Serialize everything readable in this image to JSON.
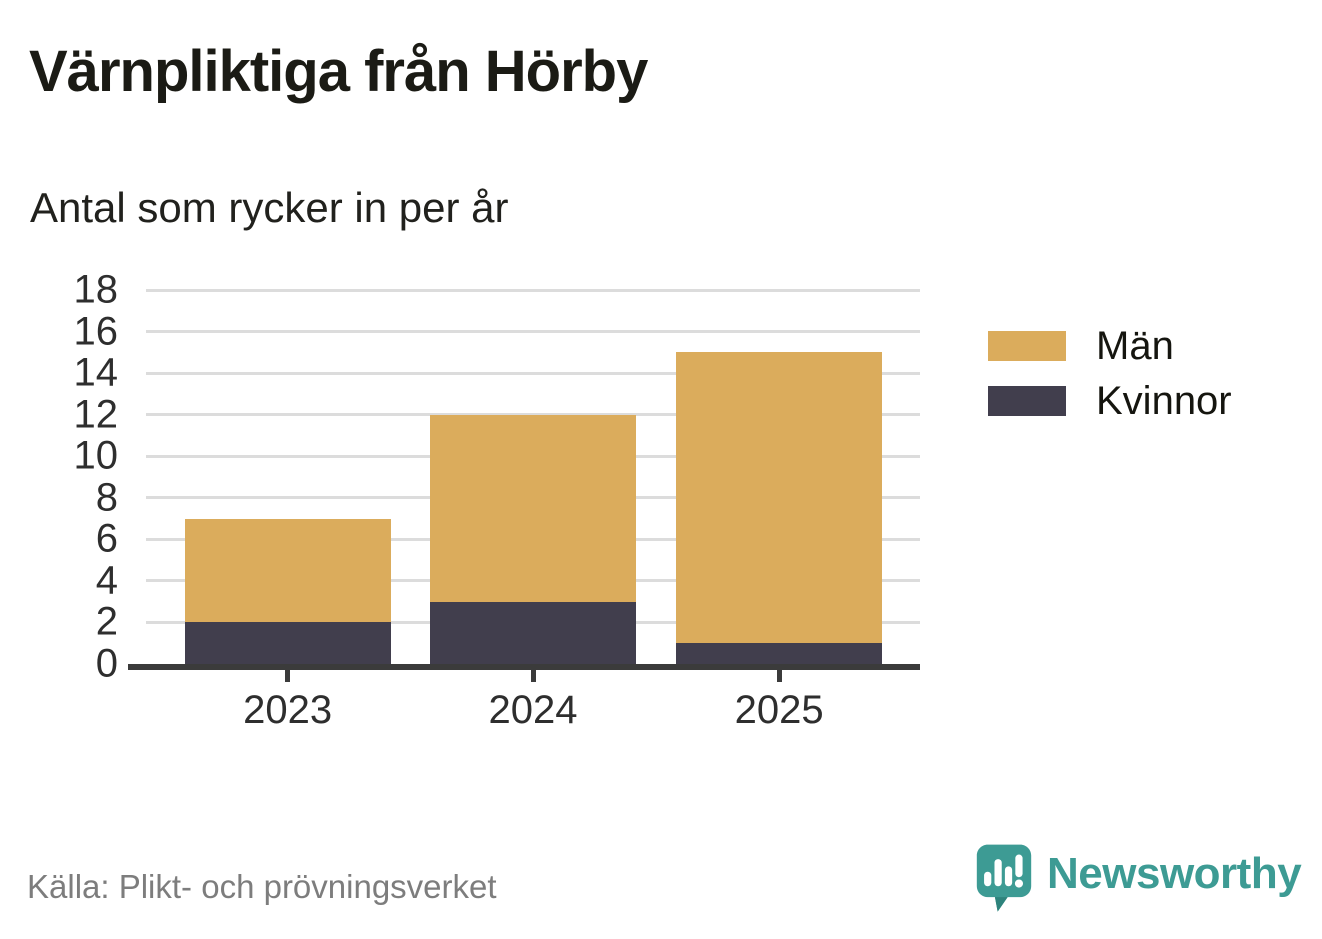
{
  "header": {
    "title": "Värnpliktiga från Hörby",
    "subtitle": "Antal som rycker in per år"
  },
  "chart_data": {
    "type": "bar",
    "stacked": true,
    "categories": [
      "2023",
      "2024",
      "2025"
    ],
    "series": [
      {
        "name": "Kvinnor",
        "color": "#413e4d",
        "values": [
          2,
          3,
          1
        ]
      },
      {
        "name": "Män",
        "color": "#dbac5c",
        "values": [
          5,
          9,
          14
        ]
      }
    ],
    "stacked_totals": [
      7,
      12,
      15
    ],
    "title": "Värnpliktiga från Hörby",
    "subtitle": "Antal som rycker in per år",
    "xlabel": "",
    "ylabel": "",
    "ylim": [
      0,
      18
    ],
    "ytick_step": 2,
    "grid": true,
    "legend_position": "right"
  },
  "legend": {
    "items": [
      {
        "label": "Män",
        "color": "#dbac5c"
      },
      {
        "label": "Kvinnor",
        "color": "#413e4d"
      }
    ]
  },
  "footer": {
    "source": "Källa: Plikt- och prövningsverket",
    "brand": "Newsworthy"
  },
  "icons": {
    "brand": "newsworthy-speech-bubble-bar-chart-icon"
  },
  "colors": {
    "bar_men": "#dbac5c",
    "bar_women": "#413e4d",
    "accent_teal": "#3d9b94",
    "accent_teal_dark": "#2e837c",
    "axis": "#3b3b3b",
    "grid": "#dcdcdc",
    "text": "#1b1b15",
    "muted_text": "#7d7d7d"
  }
}
